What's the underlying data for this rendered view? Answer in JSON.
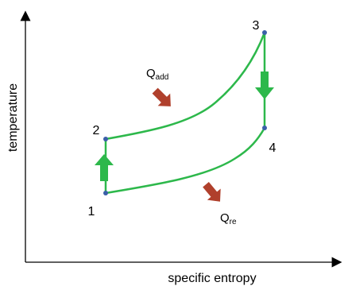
{
  "axes": {
    "x_label": "specific entropy",
    "y_label": "temperature"
  },
  "nodes": [
    {
      "label": "1"
    },
    {
      "label": "2"
    },
    {
      "label": "3"
    },
    {
      "label": "4"
    }
  ],
  "heat_labels": [
    {
      "main": "Q",
      "sub": "add"
    },
    {
      "main": "Q",
      "sub": "re"
    }
  ]
}
